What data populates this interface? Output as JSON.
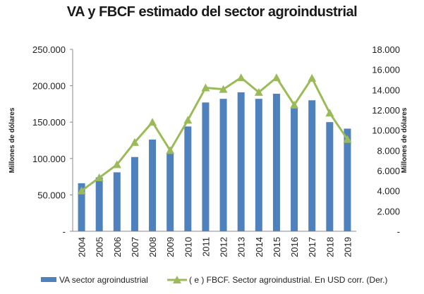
{
  "chart_data": {
    "type": "bar+line",
    "title": "VA y FBCF estimado del sector agroindustrial",
    "categories": [
      "2004",
      "2005",
      "2006",
      "2007",
      "2008",
      "2009",
      "2010",
      "2011",
      "2012",
      "2013",
      "2014",
      "2015",
      "2016",
      "2017",
      "2018",
      "2019"
    ],
    "series": [
      {
        "name": "VA sector agroindustrial",
        "type": "bar",
        "axis": "left",
        "color": "#4F81BD",
        "values": [
          66000,
          74000,
          81000,
          102000,
          126000,
          108000,
          144000,
          177000,
          182000,
          191000,
          182000,
          189000,
          171000,
          180000,
          150000,
          141000
        ]
      },
      {
        "name": "( e ) FBCF. Sector agroindustrial. En USD corr. (Der.)",
        "type": "line",
        "axis": "right",
        "color": "#9BBB59",
        "values": [
          4000,
          5300,
          6600,
          8800,
          10800,
          8000,
          11000,
          14200,
          14050,
          15200,
          13750,
          15200,
          12500,
          15150,
          11700,
          9100
        ]
      }
    ],
    "ylabel": "Millones de dólares",
    "y2label": "Millones de dólares",
    "ylim": [
      0,
      250000
    ],
    "y2lim": [
      0,
      18000
    ],
    "yticks": [
      "-",
      "50.000",
      "100.000",
      "150.000",
      "200.000",
      "250.000"
    ],
    "y2ticks": [
      "-",
      "2.000",
      "4.000",
      "6.000",
      "8.000",
      "10.000",
      "12.000",
      "14.000",
      "16.000",
      "18.000"
    ],
    "legend_position": "bottom",
    "grid": false
  }
}
